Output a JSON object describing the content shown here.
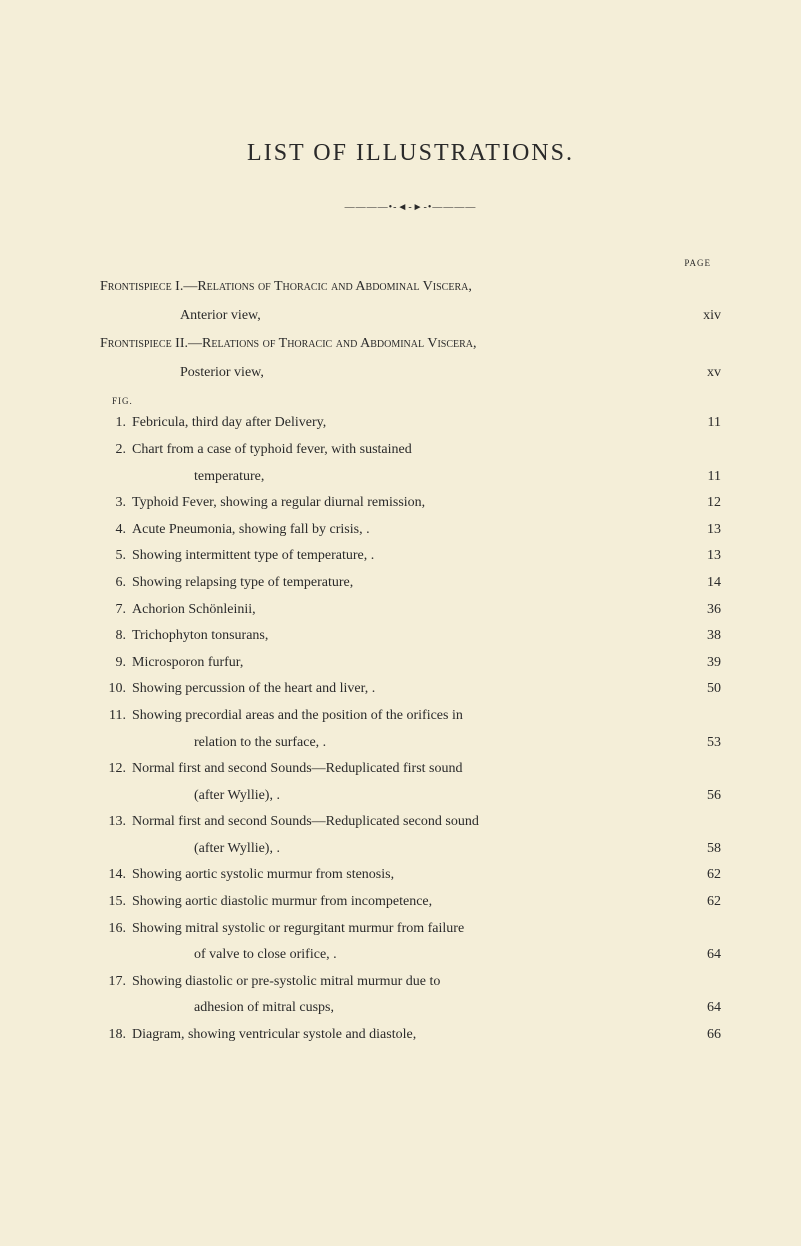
{
  "title": "LIST OF ILLUSTRATIONS.",
  "divider": "————•-◄-►-•————",
  "page_label": "PAGE",
  "fig_label": "FIG.",
  "frontispiece": [
    {
      "heading": "Frontispiece I.—Relations of Thoracic and Abdominal Viscera,",
      "sub": "Anterior view,",
      "page": "xiv"
    },
    {
      "heading": "Frontispiece II.—Relations of Thoracic and Abdominal Viscera,",
      "sub": "Posterior view,",
      "page": "xv"
    }
  ],
  "figures": [
    {
      "num": "1.",
      "text": "Febricula, third day after Delivery,",
      "cont": null,
      "page": "11"
    },
    {
      "num": "2.",
      "text": "Chart from a case of typhoid fever, with sustained",
      "cont": "temperature,",
      "page": "11"
    },
    {
      "num": "3.",
      "text": "Typhoid Fever, showing a regular diurnal remission,",
      "cont": null,
      "page": "12"
    },
    {
      "num": "4.",
      "text": "Acute Pneumonia, showing fall by crisis,   .",
      "cont": null,
      "page": "13"
    },
    {
      "num": "5.",
      "text": "Showing intermittent type of temperature, .",
      "cont": null,
      "page": "13"
    },
    {
      "num": "6.",
      "text": "Showing relapsing type of temperature,",
      "cont": null,
      "page": "14"
    },
    {
      "num": "7.",
      "text": "Achorion Schönleinii,",
      "cont": null,
      "page": "36"
    },
    {
      "num": "8.",
      "text": "Trichophyton tonsurans,",
      "cont": null,
      "page": "38"
    },
    {
      "num": "9.",
      "text": "Microsporon furfur,",
      "cont": null,
      "page": "39"
    },
    {
      "num": "10.",
      "text": "Showing percussion of the heart and liver, .",
      "cont": null,
      "page": "50"
    },
    {
      "num": "11.",
      "text": "Showing precordial areas and the position of the orifices in",
      "cont": "relation to the surface,   .",
      "page": "53"
    },
    {
      "num": "12.",
      "text": "Normal first and second Sounds—Reduplicated first sound",
      "cont": "(after Wyllie),    .",
      "page": "56"
    },
    {
      "num": "13.",
      "text": "Normal first and second Sounds—Reduplicated second sound",
      "cont": "(after Wyllie),    .",
      "page": "58"
    },
    {
      "num": "14.",
      "text": "Showing aortic systolic murmur from stenosis,",
      "cont": null,
      "page": "62"
    },
    {
      "num": "15.",
      "text": "Showing aortic diastolic murmur from incompetence,",
      "cont": null,
      "page": "62"
    },
    {
      "num": "16.",
      "text": "Showing mitral systolic or regurgitant murmur from failure",
      "cont": "of valve to close orifice, .",
      "page": "64"
    },
    {
      "num": "17.",
      "text": "Showing diastolic or pre-systolic mitral murmur due to",
      "cont": "adhesion of mitral cusps,",
      "page": "64"
    },
    {
      "num": "18.",
      "text": "Diagram, showing ventricular systole and diastole,",
      "cont": null,
      "page": "66"
    }
  ]
}
